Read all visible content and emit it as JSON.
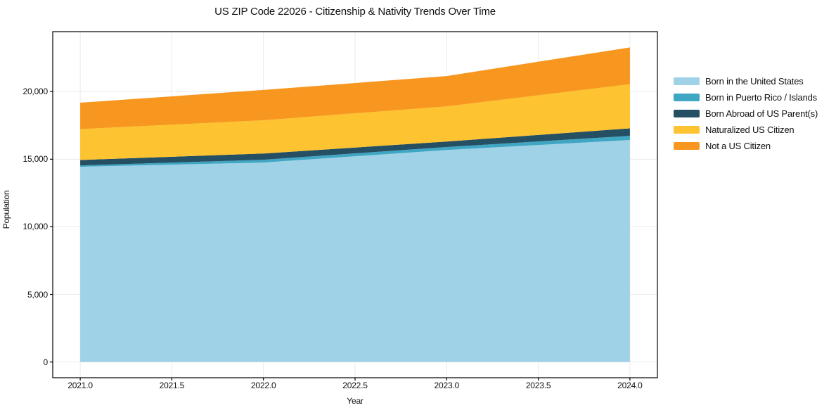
{
  "title": "US ZIP Code 22026 - Citizenship & Nativity Trends Over Time",
  "background_color": "#ffffff",
  "chart_data": {
    "type": "area",
    "stacked": true,
    "title": "US ZIP Code 22026 - Citizenship & Nativity Trends Over Time",
    "xlabel": "Year",
    "ylabel": "Population",
    "x": [
      2021,
      2022,
      2023,
      2024
    ],
    "series": [
      {
        "name": "Born in the United States",
        "color": "#a0d2e7",
        "values": [
          14440,
          14750,
          15680,
          16420
        ]
      },
      {
        "name": "Born in Puerto Rico / Islands",
        "color": "#3fa6c3",
        "values": [
          100,
          210,
          220,
          310
        ]
      },
      {
        "name": "Born Abroad of US Parent(s)",
        "color": "#254f63",
        "values": [
          400,
          460,
          410,
          550
        ]
      },
      {
        "name": "Naturalized US Citizen",
        "color": "#fdc330",
        "values": [
          2290,
          2460,
          2600,
          3270
        ]
      },
      {
        "name": "Not a US Citizen",
        "color": "#f8971f",
        "values": [
          1950,
          2240,
          2240,
          2720
        ]
      }
    ],
    "stack_totals": [
      19180,
      20120,
      21150,
      23270
    ],
    "x_ticks": [
      2021.0,
      2021.5,
      2022.0,
      2022.5,
      2023.0,
      2023.5,
      2024.0
    ],
    "x_tick_labels": [
      "2021.0",
      "2021.5",
      "2022.0",
      "2022.5",
      "2023.0",
      "2023.5",
      "2024.0"
    ],
    "y_ticks": [
      0,
      5000,
      10000,
      15000,
      20000
    ],
    "y_tick_labels": [
      "0",
      "5,000",
      "10,000",
      "15,000",
      "20,000"
    ],
    "xlim": [
      2020.85,
      2024.15
    ],
    "ylim": [
      -1163,
      24434
    ],
    "grid": true,
    "grid_color": "#eaeaea",
    "axis_color": "#000000",
    "legend_position": "right-outside"
  }
}
